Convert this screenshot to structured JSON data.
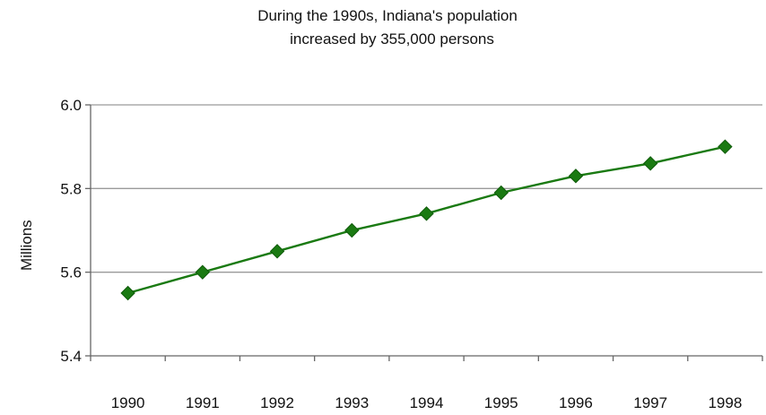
{
  "chart_data": {
    "type": "line",
    "title": "During the 1990s, Indiana's population increased by  355,000 persons",
    "title_lines": [
      "During the 1990s, Indiana's population",
      "increased by  355,000 persons"
    ],
    "xlabel": "",
    "ylabel": "Millions",
    "categories": [
      "1990",
      "1991",
      "1992",
      "1993",
      "1994",
      "1995",
      "1996",
      "1997",
      "1998"
    ],
    "series": [
      {
        "values": [
          5.55,
          5.6,
          5.65,
          5.7,
          5.74,
          5.79,
          5.83,
          5.86,
          5.9
        ],
        "color": "#1a7a12"
      }
    ],
    "y_ticks": [
      "5.4",
      "5.6",
      "5.8",
      "6.0"
    ],
    "ylim": [
      5.4,
      6.0
    ],
    "grid": true,
    "marker": "diamond"
  }
}
